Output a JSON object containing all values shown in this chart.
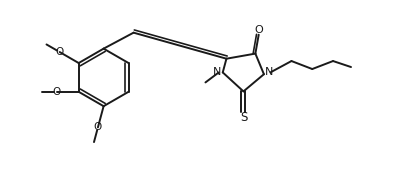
{
  "background_color": "#ffffff",
  "line_color": "#1a1a1a",
  "line_width": 1.4,
  "figsize": [
    4.03,
    1.72
  ],
  "dpi": 100,
  "xlim": [
    0,
    10
  ],
  "ylim": [
    0,
    4.27
  ]
}
